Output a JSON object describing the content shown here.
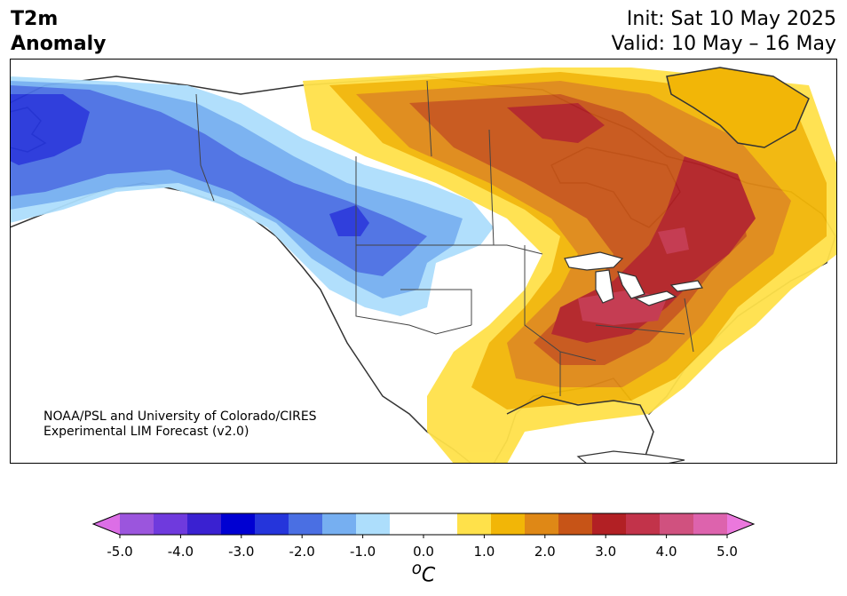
{
  "title": {
    "left_line1": "T2m",
    "left_line2": "Anomaly",
    "right_line1": "Init: Sat 10 May 2025",
    "right_line2": "Valid: 10 May – 16 May"
  },
  "credit": {
    "line1": "NOAA/PSL and University of Colorado/CIRES",
    "line2": "Experimental LIM Forecast (v2.0)"
  },
  "colorbar": {
    "unit": "°C",
    "unit_sup": "o",
    "unit_letter": "C",
    "ticks": [
      "-5.0",
      "-4.0",
      "-3.0",
      "-2.0",
      "-1.0",
      "0.0",
      "1.0",
      "2.0",
      "3.0",
      "4.0",
      "5.0"
    ],
    "tick_values": [
      -5,
      -4,
      -3,
      -2,
      -1,
      0,
      1,
      2,
      3,
      4,
      5
    ],
    "range": [
      -5,
      5
    ],
    "step": 0.5,
    "extend": "both",
    "colors": [
      "#9b55dd",
      "#6f3add",
      "#3a21d1",
      "#0000d2",
      "#2535db",
      "#4a6fe3",
      "#76aff1",
      "#addefc",
      "#ffffff",
      "#ffffff",
      "#ffe14a",
      "#f2b607",
      "#df8816",
      "#c75417",
      "#b22024",
      "#c2334a",
      "#d0517f",
      "#dd63ad"
    ],
    "under_color": "#dc6ee6",
    "over_color": "#eb78dd"
  },
  "map": {
    "region": "North America",
    "colors": {
      "ocean": "#ffffff",
      "coast": "#333333",
      "border": "#444444"
    }
  }
}
